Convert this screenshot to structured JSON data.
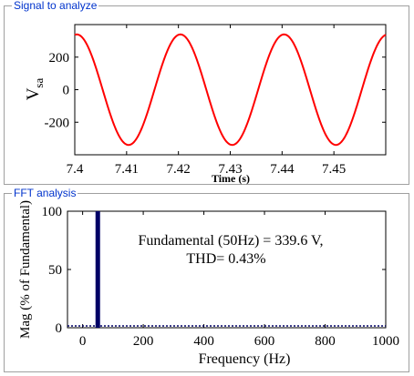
{
  "panels": {
    "signal_title": "Signal to analyze",
    "fft_title": "FFT analysis"
  },
  "annotation": {
    "line1": "Fundamental (50Hz) = 339.6 V,",
    "line2": "THD= 0.43%"
  },
  "chart_data": [
    {
      "type": "line",
      "xlabel": "Time (s)",
      "ylabel": "V",
      "ylabel_sub": "sa",
      "xlim": [
        7.4,
        7.46
      ],
      "ylim": [
        -400,
        400
      ],
      "xticks": [
        7.4,
        7.41,
        7.42,
        7.43,
        7.44,
        7.45
      ],
      "xtick_labels": [
        "7.4",
        "7.41",
        "7.42",
        "7.43",
        "7.44",
        "7.45"
      ],
      "yticks": [
        200,
        0,
        -200
      ],
      "ytick_labels": [
        "200",
        "0",
        "-200"
      ],
      "series": [
        {
          "amplitude": 339.6,
          "frequency_hz": 50,
          "color": "#ff0000"
        }
      ]
    },
    {
      "type": "bar",
      "xlabel": "Frequency (Hz)",
      "ylabel": "Mag (% of Fundamental)",
      "xlim": [
        -50,
        1000
      ],
      "ylim": [
        0,
        100
      ],
      "xticks": [
        0,
        200,
        400,
        600,
        800,
        1000
      ],
      "xtick_labels": [
        "0",
        "200",
        "400",
        "600",
        "800",
        "1000"
      ],
      "yticks": [
        100,
        50,
        0
      ],
      "ytick_labels": [
        "100",
        "50",
        "0"
      ],
      "bars": [
        {
          "x": 50,
          "value": 100
        }
      ],
      "bar_color": "#000066"
    }
  ]
}
